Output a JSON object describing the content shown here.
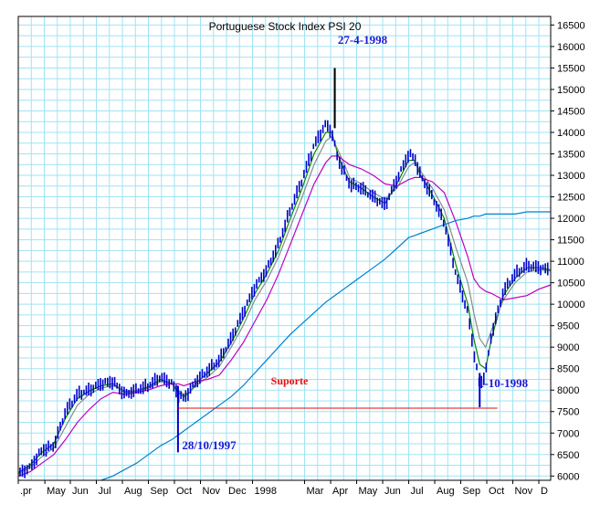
{
  "chart_data": {
    "type": "bar",
    "subtype": "price-bars-with-moving-averages",
    "title": "Portuguese Stock Index PSI 20",
    "ylim": [
      5900,
      16700
    ],
    "y_ticks": [
      6000,
      6500,
      7000,
      7500,
      8000,
      8500,
      9000,
      9500,
      10000,
      10500,
      11000,
      11500,
      12000,
      12500,
      13000,
      13500,
      14000,
      14500,
      15000,
      15500,
      16000,
      16500
    ],
    "y_tick_labels": [
      "6000",
      "6500",
      "7000",
      "7500",
      "8000",
      "8500",
      "9000",
      "9500",
      "10000",
      "10500",
      "11000",
      "11500",
      "12000",
      "12500",
      "13000",
      "13500",
      "14000",
      "14500",
      "15000",
      "15500",
      "16000",
      "16500"
    ],
    "x_ticks": [
      {
        "label": ".pr",
        "week": 0
      },
      {
        "label": "May",
        "week": 4.5
      },
      {
        "label": "Jun",
        "week": 8.8
      },
      {
        "label": "Jul",
        "week": 13.2
      },
      {
        "label": "Aug",
        "week": 17.6
      },
      {
        "label": "Sep",
        "week": 22
      },
      {
        "label": "Oct",
        "week": 26.4
      },
      {
        "label": "Nov",
        "week": 30.8
      },
      {
        "label": "Dec",
        "week": 35.2
      },
      {
        "label": "1998",
        "week": 39.6
      },
      {
        "label": "Mar",
        "week": 48.4
      },
      {
        "label": "Apr",
        "week": 52.8
      },
      {
        "label": "May",
        "week": 57.2
      },
      {
        "label": "Jun",
        "week": 61.6
      },
      {
        "label": "Jul",
        "week": 66
      },
      {
        "label": "Aug",
        "week": 70.4
      },
      {
        "label": "Sep",
        "week": 74.8
      },
      {
        "label": "Oct",
        "week": 79.2
      },
      {
        "label": "Nov",
        "week": 83.6
      },
      {
        "label": "D",
        "week": 88
      }
    ],
    "x_range_weeks": [
      0,
      90
    ],
    "price": {
      "week": [
        0,
        2,
        4,
        6,
        8,
        10,
        12,
        14,
        16,
        18,
        20,
        22,
        24,
        26,
        27,
        28,
        29,
        30,
        32,
        34,
        36,
        38,
        40,
        42,
        44,
        46,
        48,
        50,
        52,
        53,
        54,
        55,
        56,
        58,
        60,
        62,
        64,
        66,
        67,
        68,
        70,
        72,
        74,
        76,
        77,
        78,
        79,
        80,
        82,
        84,
        86,
        88,
        90
      ],
      "close": [
        6050,
        6200,
        6600,
        6700,
        7500,
        7900,
        8000,
        8150,
        8200,
        7900,
        8000,
        8100,
        8300,
        8150,
        7900,
        7800,
        8000,
        8200,
        8450,
        8700,
        9200,
        9800,
        10400,
        10800,
        11400,
        12200,
        12900,
        13700,
        14200,
        14000,
        13400,
        13100,
        12800,
        12700,
        12500,
        12300,
        12900,
        13500,
        13400,
        13000,
        12500,
        11900,
        10700,
        9800,
        8900,
        8100,
        8400,
        9300,
        10300,
        10700,
        10900,
        10850,
        10800
      ],
      "low_spikes": [
        {
          "week": 27,
          "low": 6550,
          "high": 8100
        },
        {
          "week": 78,
          "low": 7600,
          "high": 8400
        }
      ],
      "high_spikes": [
        {
          "week": 53.5,
          "low": 14100,
          "high": 15500
        }
      ]
    },
    "series": [
      {
        "color": "#008a00",
        "values": [
          6080,
          6250,
          6550,
          6750,
          7350,
          7800,
          7980,
          8100,
          8150,
          7950,
          7980,
          8080,
          8250,
          8150,
          7950,
          7850,
          7950,
          8150,
          8400,
          8650,
          9100,
          9650,
          10250,
          10700,
          11250,
          12000,
          12700,
          13500,
          14000,
          14000,
          13500,
          13150,
          12850,
          12700,
          12500,
          12350,
          12800,
          13350,
          13350,
          13000,
          12550,
          12000,
          10900,
          10000,
          9200,
          8600,
          8500,
          9200,
          10200,
          10600,
          10850,
          10850,
          10800
        ]
      },
      {
        "color": "#8a8a8a",
        "values": [
          6050,
          6200,
          6450,
          6650,
          7150,
          7650,
          7900,
          8050,
          8100,
          7980,
          7980,
          8050,
          8200,
          8150,
          8000,
          7900,
          7950,
          8100,
          8300,
          8550,
          9000,
          9500,
          10100,
          10550,
          11100,
          11800,
          12500,
          13250,
          13800,
          13900,
          13600,
          13300,
          12950,
          12800,
          12600,
          12450,
          12700,
          13200,
          13300,
          13100,
          12700,
          12200,
          11300,
          10500,
          9800,
          9200,
          9000,
          9400,
          10100,
          10500,
          10750,
          10800,
          10780
        ]
      },
      {
        "color": "#c000c0",
        "values": [
          6000,
          6100,
          6300,
          6500,
          6850,
          7250,
          7550,
          7800,
          7950,
          7900,
          7950,
          8000,
          8100,
          8150,
          8150,
          8100,
          8150,
          8200,
          8250,
          8350,
          8700,
          9100,
          9600,
          10100,
          10700,
          11400,
          12100,
          12800,
          13300,
          13450,
          13450,
          13350,
          13250,
          13150,
          13000,
          12800,
          12750,
          12900,
          12950,
          12950,
          12850,
          12600,
          11900,
          11100,
          10600,
          10400,
          10300,
          10250,
          10100,
          10150,
          10200,
          10350,
          10450
        ]
      },
      {
        "color": "#0080d0",
        "values": [
          null,
          null,
          null,
          null,
          null,
          null,
          null,
          5900,
          6000,
          6150,
          6300,
          6500,
          6700,
          6850,
          6950,
          7050,
          7150,
          7250,
          7450,
          7650,
          7850,
          8100,
          8400,
          8700,
          9000,
          9300,
          9550,
          9800,
          10050,
          10150,
          10250,
          10350,
          10450,
          10650,
          10850,
          11050,
          11300,
          11550,
          11600,
          11650,
          11750,
          11850,
          11950,
          12000,
          12050,
          12050,
          12100,
          12100,
          12100,
          12100,
          12150,
          12150,
          12150
        ]
      }
    ],
    "support_line": {
      "value": 7580,
      "from_week": 27,
      "to_week": 81
    },
    "annotations": {
      "support": "Suporte",
      "date_low_1997": "28/10/1997",
      "date_high_1998": "27-4-1998",
      "date_low_1998": "1-10-1998"
    },
    "grid": true,
    "colors": {
      "price": "#0000cc",
      "grid": "#9fe3f4",
      "support": "#e01010",
      "annotation": "#1a1ad6",
      "frame": "#000000"
    }
  }
}
